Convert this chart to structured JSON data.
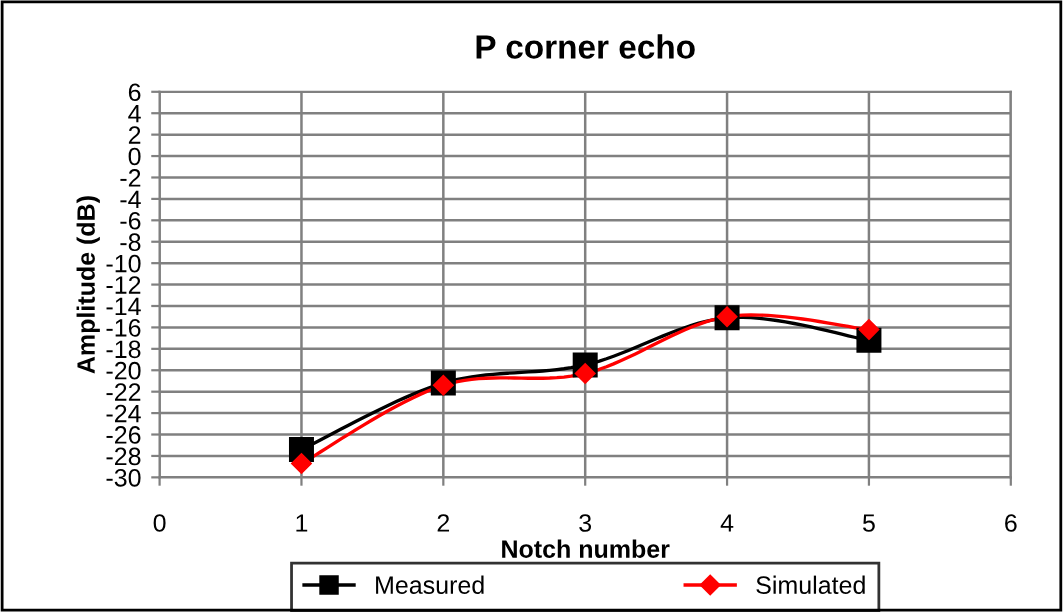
{
  "chart_data": {
    "type": "line",
    "title": "P corner echo",
    "xlabel": "Notch number",
    "ylabel": "Amplitude (dB)",
    "x": [
      1,
      2,
      3,
      4,
      5
    ],
    "series": [
      {
        "name": "Measured",
        "color": "#000000",
        "marker": "square",
        "values": [
          -27.4,
          -21.2,
          -19.5,
          -15.1,
          -17.2
        ]
      },
      {
        "name": "Simulated",
        "color": "#ff0000",
        "marker": "diamond",
        "values": [
          -28.7,
          -21.4,
          -20.3,
          -15.0,
          -16.2
        ]
      }
    ],
    "xlim": [
      0,
      6
    ],
    "xticks": [
      0,
      1,
      2,
      3,
      4,
      5,
      6
    ],
    "ylim": [
      -30,
      6
    ],
    "yticks": [
      -30,
      -28,
      -26,
      -24,
      -22,
      -20,
      -18,
      -16,
      -14,
      -12,
      -10,
      -8,
      -6,
      -4,
      -2,
      0,
      2,
      4,
      6
    ],
    "grid": true,
    "legend": "bottom",
    "line_style": "solid"
  }
}
